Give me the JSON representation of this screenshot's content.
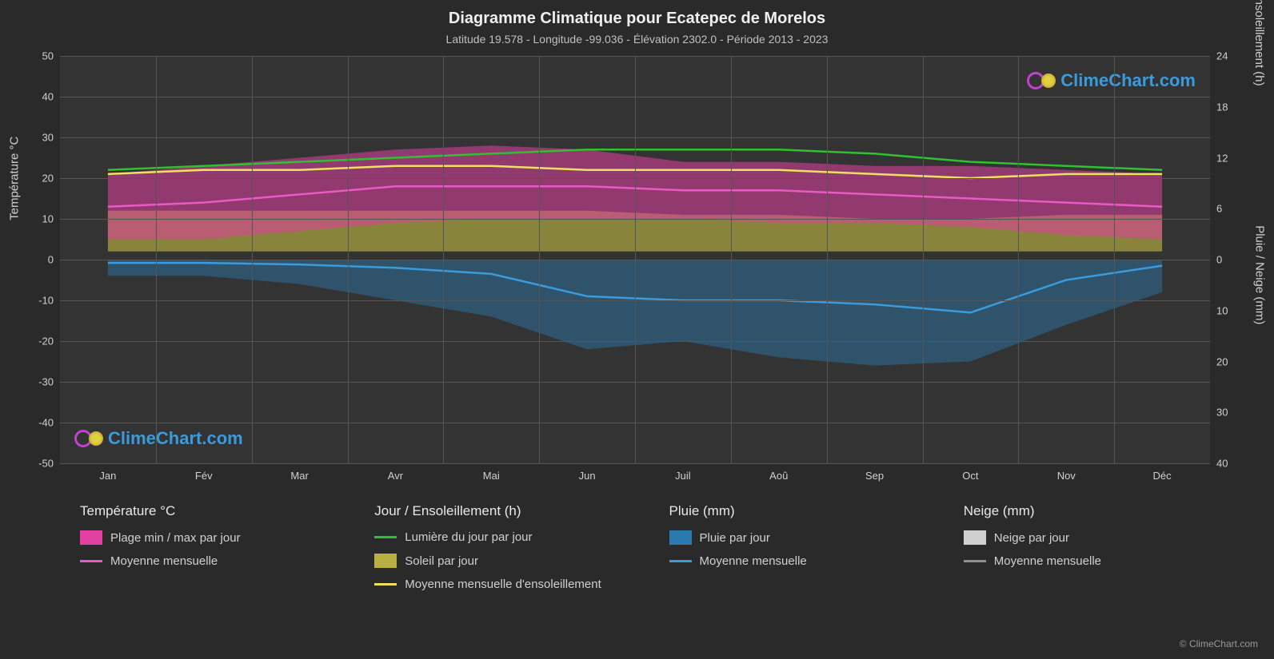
{
  "title": "Diagramme Climatique pour Ecatepec de Morelos",
  "subtitle": "Latitude 19.578 - Longitude -99.036 - Élévation 2302.0 - Période 2013 - 2023",
  "axis_left_title": "Température °C",
  "axis_right_top_title": "Jour / Ensoleillement (h)",
  "axis_right_bottom_title": "Pluie / Neige (mm)",
  "watermark_text": "ClimeChart.com",
  "watermark_color": "#3a9bdc",
  "watermark_logo_ring_color": "#c040d0",
  "watermark_logo_sun_color": "#e0d040",
  "copyright": "© ClimeChart.com",
  "background_color": "#2a2a2a",
  "plot_background": "#333333",
  "grid_color": "#555555",
  "text_color": "#d0d0d0",
  "months": [
    "Jan",
    "Fév",
    "Mar",
    "Avr",
    "Mai",
    "Jun",
    "Juil",
    "Aoû",
    "Sep",
    "Oct",
    "Nov",
    "Déc"
  ],
  "y_left": {
    "min": -50,
    "max": 50,
    "step": 10,
    "ticks": [
      50,
      40,
      30,
      20,
      10,
      0,
      -10,
      -20,
      -30,
      -40,
      -50
    ]
  },
  "y_right_top": {
    "min": 0,
    "max": 24,
    "step": 6,
    "ticks": [
      24,
      18,
      12,
      6,
      0
    ]
  },
  "y_right_bottom": {
    "min": 0,
    "max": 40,
    "step": 10,
    "ticks": [
      10,
      20,
      30,
      40
    ]
  },
  "series": {
    "temp_range": {
      "min": [
        5,
        5,
        7,
        9,
        10,
        10,
        10,
        9,
        9,
        8,
        6,
        5
      ],
      "max": [
        21,
        23,
        25,
        27,
        28,
        27,
        24,
        24,
        23,
        23,
        22,
        21
      ]
    },
    "temp_mean": [
      13,
      14,
      16,
      18,
      18,
      18,
      17,
      17,
      16,
      15,
      14,
      13
    ],
    "daylight": [
      22,
      23,
      24,
      25,
      26,
      27,
      27,
      27,
      26,
      24,
      23,
      22
    ],
    "sunshine_mean": [
      21,
      22,
      22,
      23,
      23,
      22,
      22,
      22,
      21,
      20,
      21,
      21
    ],
    "sun_band_min": [
      2,
      2,
      2,
      2,
      2,
      2,
      2,
      2,
      2,
      2,
      2,
      2
    ],
    "sun_band_max": [
      12,
      12,
      12,
      12,
      12,
      12,
      11,
      11,
      10,
      10,
      11,
      11
    ],
    "rain_mean": [
      -0.8,
      -0.8,
      -1.2,
      -2,
      -3.5,
      -9,
      -10,
      -10,
      -11,
      -13,
      -5,
      -1.5
    ],
    "rain_bars_max": [
      -4,
      -4,
      -6,
      -10,
      -14,
      -22,
      -20,
      -24,
      -26,
      -25,
      -16,
      -8
    ]
  },
  "colors": {
    "temp_band": "#e040a0",
    "temp_mean_line": "#e85ac4",
    "daylight_line": "#30c030",
    "sunshine_band": "#b8b040",
    "sunshine_line": "#f0e060",
    "rain_bars": "#2a7ab0",
    "rain_line": "#3a9bdc",
    "snow_bars": "#d0d0d0",
    "snow_line": "#909090"
  },
  "legend": {
    "col1": {
      "heading": "Température °C",
      "items": [
        {
          "type": "swatch",
          "label": "Plage min / max par jour",
          "key": "temp_band"
        },
        {
          "type": "line",
          "label": "Moyenne mensuelle",
          "key": "temp_mean_line"
        }
      ]
    },
    "col2": {
      "heading": "Jour / Ensoleillement (h)",
      "items": [
        {
          "type": "line",
          "label": "Lumière du jour par jour",
          "key": "daylight_line"
        },
        {
          "type": "swatch",
          "label": "Soleil par jour",
          "key": "sunshine_band"
        },
        {
          "type": "line",
          "label": "Moyenne mensuelle d'ensoleillement",
          "key": "sunshine_line"
        }
      ]
    },
    "col3": {
      "heading": "Pluie (mm)",
      "items": [
        {
          "type": "swatch",
          "label": "Pluie par jour",
          "key": "rain_bars"
        },
        {
          "type": "line",
          "label": "Moyenne mensuelle",
          "key": "rain_line"
        }
      ]
    },
    "col4": {
      "heading": "Neige (mm)",
      "items": [
        {
          "type": "swatch",
          "label": "Neige par jour",
          "key": "snow_bars"
        },
        {
          "type": "line",
          "label": "Moyenne mensuelle",
          "key": "snow_line"
        }
      ]
    }
  }
}
